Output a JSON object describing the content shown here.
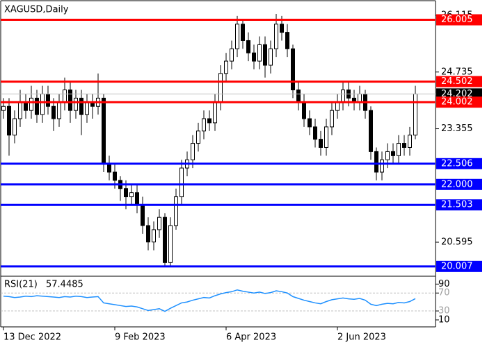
{
  "chart_data": [
    {
      "type": "candlestick",
      "title": "XAGUSD,Daily",
      "open": [
        23.8,
        23.9,
        23.2,
        23.6,
        24.0,
        23.8,
        24.1,
        23.7,
        24.2,
        23.9,
        23.6,
        24.0,
        24.3,
        23.8,
        24.1,
        23.7,
        24.0,
        23.9,
        24.1,
        22.5,
        22.3,
        22.1,
        21.9,
        21.7,
        21.8,
        21.5,
        21.0,
        20.6,
        20.9,
        21.2,
        20.1,
        21.0,
        21.7,
        22.4,
        22.6,
        23.0,
        23.3,
        23.6,
        23.5,
        24.0,
        24.7,
        25.0,
        25.3,
        25.9,
        25.5,
        25.2,
        25.0,
        25.4,
        24.9,
        25.3,
        25.9,
        25.7,
        25.3,
        24.3,
        24.0,
        23.6,
        23.4,
        23.1,
        22.9,
        23.4,
        23.8,
        24.0,
        24.3,
        24.1,
        24.0,
        24.2,
        23.8,
        22.8,
        22.3,
        22.6,
        22.8,
        22.7,
        23.0,
        22.9,
        23.2
      ],
      "high": [
        24.1,
        24.1,
        23.8,
        24.3,
        24.2,
        24.4,
        24.3,
        24.4,
        24.4,
        24.1,
        24.2,
        24.6,
        24.5,
        24.3,
        24.3,
        24.2,
        24.2,
        24.7,
        24.2,
        22.7,
        22.5,
        22.2,
        22.1,
        22.0,
        22.0,
        21.7,
        21.2,
        21.1,
        21.4,
        21.3,
        21.2,
        21.9,
        22.6,
        22.8,
        23.2,
        23.5,
        23.8,
        23.8,
        24.2,
        24.9,
        25.2,
        25.5,
        26.1,
        26.0,
        25.7,
        25.4,
        25.6,
        25.6,
        25.5,
        26.15,
        26.1,
        25.9,
        25.4,
        24.5,
        24.2,
        23.8,
        23.6,
        23.3,
        23.6,
        24.0,
        24.2,
        24.5,
        24.5,
        24.3,
        24.4,
        24.3,
        23.9,
        22.9,
        22.8,
        23.0,
        23.0,
        23.2,
        23.2,
        23.4,
        24.4
      ],
      "low": [
        23.6,
        22.7,
        23.0,
        23.4,
        23.6,
        23.6,
        23.5,
        23.5,
        23.7,
        23.3,
        23.4,
        23.8,
        23.5,
        23.6,
        23.2,
        23.5,
        23.6,
        23.7,
        22.3,
        22.1,
        21.9,
        21.6,
        21.4,
        21.5,
        21.3,
        20.8,
        20.4,
        20.4,
        20.7,
        20.0,
        20.0,
        20.9,
        21.5,
        22.2,
        22.4,
        22.8,
        23.1,
        23.3,
        23.3,
        23.8,
        24.5,
        24.8,
        25.1,
        25.3,
        25.0,
        24.8,
        24.8,
        24.6,
        24.7,
        25.1,
        25.5,
        25.1,
        24.1,
        23.8,
        23.4,
        23.2,
        22.9,
        22.7,
        22.7,
        23.2,
        23.6,
        23.8,
        23.9,
        23.8,
        23.8,
        23.6,
        22.6,
        22.1,
        22.1,
        22.4,
        22.5,
        22.5,
        22.7,
        22.7,
        23.1
      ],
      "close": [
        23.9,
        23.2,
        23.6,
        24.0,
        23.8,
        24.1,
        23.7,
        24.2,
        23.9,
        23.6,
        24.0,
        24.3,
        23.8,
        24.1,
        23.7,
        24.0,
        23.9,
        24.1,
        22.5,
        22.3,
        22.1,
        21.9,
        21.7,
        21.8,
        21.5,
        21.0,
        20.6,
        20.9,
        21.2,
        20.1,
        21.0,
        21.7,
        22.4,
        22.6,
        23.0,
        23.3,
        23.6,
        23.5,
        24.0,
        24.7,
        25.0,
        25.3,
        25.9,
        25.5,
        25.2,
        25.0,
        25.4,
        24.9,
        25.3,
        25.9,
        25.7,
        25.3,
        24.3,
        24.0,
        23.6,
        23.4,
        23.1,
        22.9,
        23.4,
        23.8,
        24.0,
        24.3,
        24.1,
        24.0,
        24.2,
        23.8,
        22.8,
        22.3,
        22.6,
        22.8,
        22.7,
        23.0,
        22.9,
        23.2,
        24.2
      ],
      "xticks": [
        {
          "value": 0,
          "label": "13 Dec 2022"
        },
        {
          "value": 20,
          "label": "9 Feb 2023"
        },
        {
          "value": 40,
          "label": "6 Apr 2023"
        },
        {
          "value": 60,
          "label": "2 Jun 2023"
        }
      ],
      "ylim": [
        19.785,
        26.453
      ],
      "yticks": [
        26.115,
        24.735,
        23.355,
        20.595
      ],
      "current_price": 24.202,
      "levels": [
        {
          "value": 26.005,
          "color": "#ff0000"
        },
        {
          "value": 24.502,
          "color": "#ff0000"
        },
        {
          "value": 24.002,
          "color": "#ff0000"
        },
        {
          "value": 22.506,
          "color": "#0000ff"
        },
        {
          "value": {
            "value": 22,
            "label": "22.000"
          },
          "color": "#0000ff"
        },
        {
          "value": 21.503,
          "color": "#0000ff"
        },
        {
          "value": 20.007,
          "color": "#0000ff"
        }
      ]
    },
    {
      "type": "line",
      "title": "RSI(21)",
      "last_value": 57.4485,
      "color": "#1e90ff",
      "values": [
        63,
        62,
        60,
        61,
        63,
        62,
        64,
        63,
        62,
        61,
        60,
        62,
        61,
        63,
        62,
        60,
        61,
        62,
        48,
        46,
        44,
        42,
        40,
        41,
        39,
        35,
        31,
        33,
        35,
        29,
        36,
        42,
        48,
        50,
        54,
        57,
        60,
        59,
        64,
        68,
        71,
        73,
        77,
        74,
        72,
        70,
        72,
        69,
        71,
        75,
        73,
        70,
        62,
        58,
        54,
        51,
        48,
        46,
        51,
        55,
        57,
        59,
        57,
        56,
        58,
        54,
        45,
        42,
        45,
        47,
        46,
        49,
        48,
        51,
        57.4485
      ],
      "ylim": [
        -4,
        106
      ],
      "yticks": [
        90,
        70,
        30,
        10
      ],
      "levels": [
        70,
        30
      ]
    }
  ]
}
